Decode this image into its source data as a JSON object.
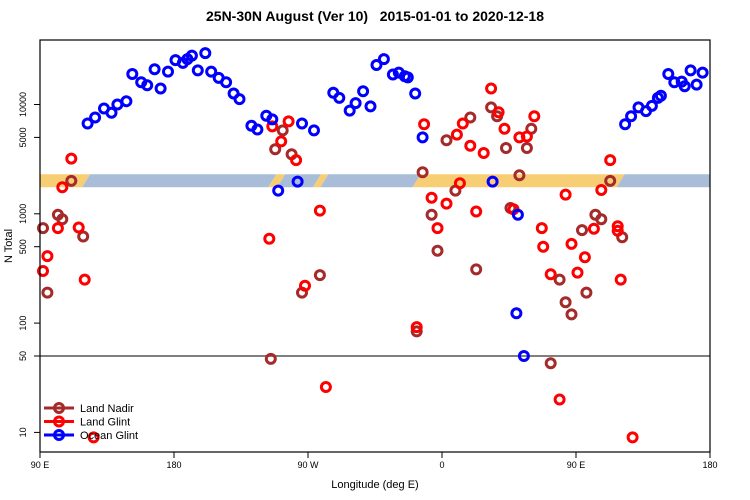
{
  "title": "25N-30N August (Ver 10)   2015-01-01 to 2020-12-18",
  "chart_data": {
    "type": "scatter",
    "title": "25N-30N August (Ver 10)   2015-01-01 to 2020-12-18",
    "xlabel": "Longitude (deg E)",
    "ylabel": "N Total",
    "x_axis": {
      "range": [
        90,
        540
      ],
      "ticks": [
        90,
        180,
        270,
        360,
        450,
        540
      ],
      "tick_labels": [
        "90 E",
        "180",
        "90 W",
        "0",
        "90 E",
        "180"
      ],
      "note": "longitude axis wraps around the globe: 270=90W, 360=0, 450=90E, 540=180"
    },
    "y_axis": {
      "scale": "log10",
      "ticks": [
        10,
        50,
        100,
        500,
        1000,
        5000,
        10000
      ],
      "tick_labels": [
        "10",
        "50",
        "100",
        "500",
        "1000",
        "5000",
        "10000"
      ],
      "range": [
        7,
        39000
      ]
    },
    "reference_line": {
      "value": 50,
      "color": "#7f7f7f"
    },
    "band": {
      "value_range": [
        1750,
        2300
      ],
      "colors": {
        "orange": "#F7CE74",
        "blue": "#A9BDD8"
      },
      "segments": [
        {
          "from": 90,
          "to": 121,
          "color": "orange"
        },
        {
          "from": 121,
          "to": 246,
          "color": "blue"
        },
        {
          "from": 246,
          "to": 252,
          "color": "orange"
        },
        {
          "from": 252,
          "to": 276,
          "color": "blue"
        },
        {
          "from": 276,
          "to": 281,
          "color": "orange"
        },
        {
          "from": 281,
          "to": 343,
          "color": "blue"
        },
        {
          "from": 343,
          "to": 480,
          "color": "orange"
        },
        {
          "from": 480,
          "to": 540,
          "color": "blue"
        }
      ]
    },
    "legend": {
      "position": "bottom-left",
      "entries": [
        "Land Nadir",
        "Land Glint",
        "Ocean Glint"
      ]
    },
    "series": [
      {
        "name": "Land Nadir",
        "color": "#A52A2A",
        "points": [
          [
            111,
            2000
          ],
          [
            102,
            980
          ],
          [
            105,
            890
          ],
          [
            92,
            740
          ],
          [
            119,
            620
          ],
          [
            95,
            190
          ],
          [
            253,
            5800
          ],
          [
            248,
            3900
          ],
          [
            259,
            3500
          ],
          [
            266,
            190
          ],
          [
            278,
            275
          ],
          [
            245,
            47
          ],
          [
            343,
            84
          ],
          [
            347,
            2400
          ],
          [
            369,
            1630
          ],
          [
            353,
            980
          ],
          [
            357,
            460
          ],
          [
            383,
            310
          ],
          [
            363,
            4700
          ],
          [
            379,
            7600
          ],
          [
            393,
            9400
          ],
          [
            397,
            7800
          ],
          [
            403,
            4000
          ],
          [
            417,
            4000
          ],
          [
            420,
            6000
          ],
          [
            412,
            2250
          ],
          [
            406,
            1130
          ],
          [
            463,
            980
          ],
          [
            467,
            890
          ],
          [
            454,
            710
          ],
          [
            481,
            610
          ],
          [
            439,
            250
          ],
          [
            457,
            190
          ],
          [
            443,
            155
          ],
          [
            447,
            120
          ],
          [
            473,
            2000
          ],
          [
            433,
            43
          ]
        ]
      },
      {
        "name": "Land Glint",
        "color": "#FF0000",
        "points": [
          [
            111,
            3200
          ],
          [
            105,
            1750
          ],
          [
            102,
            740
          ],
          [
            116,
            750
          ],
          [
            95,
            410
          ],
          [
            92,
            300
          ],
          [
            120,
            250
          ],
          [
            126,
            9
          ],
          [
            246,
            6300
          ],
          [
            252,
            4600
          ],
          [
            257,
            7000
          ],
          [
            262,
            3100
          ],
          [
            244,
            590
          ],
          [
            278,
            1070
          ],
          [
            268,
            220
          ],
          [
            343,
            92
          ],
          [
            282,
            26
          ],
          [
            353,
            1400
          ],
          [
            363,
            1240
          ],
          [
            357,
            740
          ],
          [
            383,
            1050
          ],
          [
            348,
            6600
          ],
          [
            370,
            5300
          ],
          [
            374,
            6700
          ],
          [
            379,
            4200
          ],
          [
            372,
            1900
          ],
          [
            393,
            14000
          ],
          [
            398,
            8500
          ],
          [
            402,
            6000
          ],
          [
            388,
            3600
          ],
          [
            412,
            5000
          ],
          [
            417,
            5100
          ],
          [
            422,
            7800
          ],
          [
            408,
            1100
          ],
          [
            443,
            1500
          ],
          [
            467,
            1650
          ],
          [
            473,
            3100
          ],
          [
            427,
            740
          ],
          [
            428,
            500
          ],
          [
            447,
            530
          ],
          [
            456,
            400
          ],
          [
            462,
            730
          ],
          [
            478,
            770
          ],
          [
            478,
            700
          ],
          [
            433,
            280
          ],
          [
            451,
            290
          ],
          [
            480,
            250
          ],
          [
            439,
            20
          ],
          [
            488,
            9
          ]
        ]
      },
      {
        "name": "Ocean Glint",
        "color": "#0000FF",
        "points": [
          [
            122,
            6700
          ],
          [
            127,
            7600
          ],
          [
            133,
            9200
          ],
          [
            138,
            8400
          ],
          [
            142,
            10000
          ],
          [
            148,
            10700
          ],
          [
            152,
            19000
          ],
          [
            158,
            16000
          ],
          [
            162,
            15000
          ],
          [
            167,
            21000
          ],
          [
            171,
            14000
          ],
          [
            176,
            20000
          ],
          [
            181,
            25500
          ],
          [
            186,
            24000
          ],
          [
            189,
            26000
          ],
          [
            192,
            28000
          ],
          [
            196,
            20500
          ],
          [
            201,
            29500
          ],
          [
            205,
            20000
          ],
          [
            210,
            17500
          ],
          [
            215,
            16000
          ],
          [
            220,
            12600
          ],
          [
            224,
            11200
          ],
          [
            232,
            6400
          ],
          [
            236,
            5900
          ],
          [
            242,
            7900
          ],
          [
            246,
            7300
          ],
          [
            266,
            6700
          ],
          [
            274,
            5800
          ],
          [
            287,
            12800
          ],
          [
            291,
            11500
          ],
          [
            298,
            8800
          ],
          [
            302,
            10300
          ],
          [
            307,
            13200
          ],
          [
            312,
            9600
          ],
          [
            316,
            23000
          ],
          [
            321,
            26000
          ],
          [
            327,
            18800
          ],
          [
            331,
            19600
          ],
          [
            335,
            18100
          ],
          [
            337,
            17700
          ],
          [
            342,
            12600
          ],
          [
            347,
            5000
          ],
          [
            250,
            1630
          ],
          [
            263,
            1970
          ],
          [
            394,
            1970
          ],
          [
            411,
            980
          ],
          [
            410,
            123
          ],
          [
            415,
            50
          ],
          [
            483,
            6600
          ],
          [
            487,
            7800
          ],
          [
            492,
            9400
          ],
          [
            497,
            8700
          ],
          [
            501,
            9700
          ],
          [
            505,
            11500
          ],
          [
            507,
            12000
          ],
          [
            512,
            19000
          ],
          [
            516,
            16000
          ],
          [
            521,
            16200
          ],
          [
            523,
            14700
          ],
          [
            527,
            20500
          ],
          [
            531,
            15200
          ],
          [
            535,
            19600
          ]
        ]
      }
    ]
  }
}
